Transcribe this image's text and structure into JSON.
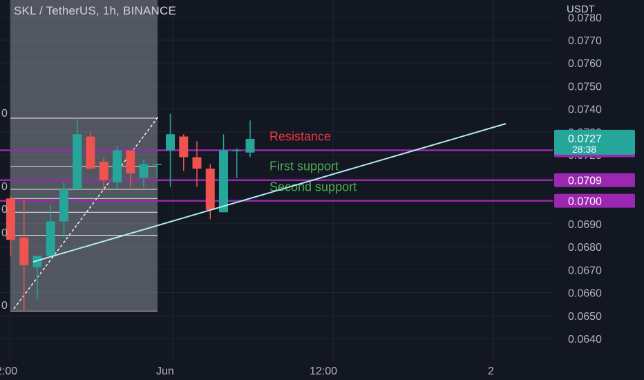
{
  "header": {
    "symbol_title": "SKL / TetherUS, 1h, BINANCE",
    "quote_currency": "USDT"
  },
  "chart_data": {
    "type": "candlestick",
    "title": "SKL / TetherUS, 1h, BINANCE",
    "ylabel": "USDT",
    "ylim": [
      0.0635,
      0.0785
    ],
    "y_ticks": [
      "0.0780",
      "0.0770",
      "0.0760",
      "0.0750",
      "0.0740",
      "0.0730",
      "0.0720",
      "0.0710",
      "0.0700",
      "0.0690",
      "0.0680",
      "0.0670",
      "0.0660",
      "0.0650",
      "0.0640"
    ],
    "x_ticks": [
      "2:00",
      "Jun",
      "12:00",
      "2"
    ],
    "grid": true,
    "candles": [
      {
        "o": 0.0701,
        "h": 0.0702,
        "l": 0.0676,
        "c": 0.0683
      },
      {
        "o": 0.0684,
        "h": 0.0701,
        "l": 0.0652,
        "c": 0.0672
      },
      {
        "o": 0.0671,
        "h": 0.0676,
        "l": 0.0657,
        "c": 0.0676
      },
      {
        "o": 0.0676,
        "h": 0.0698,
        "l": 0.0676,
        "c": 0.0691
      },
      {
        "o": 0.0691,
        "h": 0.0708,
        "l": 0.0684,
        "c": 0.0705
      },
      {
        "o": 0.0705,
        "h": 0.0736,
        "l": 0.0705,
        "c": 0.0729
      },
      {
        "o": 0.0728,
        "h": 0.073,
        "l": 0.0714,
        "c": 0.0714
      },
      {
        "o": 0.0717,
        "h": 0.0719,
        "l": 0.0705,
        "c": 0.0709
      },
      {
        "o": 0.0708,
        "h": 0.0724,
        "l": 0.0705,
        "c": 0.0722
      },
      {
        "o": 0.0722,
        "h": 0.0722,
        "l": 0.0706,
        "c": 0.0712
      },
      {
        "o": 0.071,
        "h": 0.0718,
        "l": 0.0706,
        "c": 0.0716
      },
      {
        "o": 0.0716,
        "h": 0.0716,
        "l": 0.071,
        "c": 0.0716
      },
      {
        "o": 0.0722,
        "h": 0.0738,
        "l": 0.0706,
        "c": 0.0729
      },
      {
        "o": 0.0728,
        "h": 0.0729,
        "l": 0.0713,
        "c": 0.0719
      },
      {
        "o": 0.0719,
        "h": 0.0726,
        "l": 0.0706,
        "c": 0.0714
      },
      {
        "o": 0.0714,
        "h": 0.0716,
        "l": 0.0692,
        "c": 0.0696
      },
      {
        "o": 0.0695,
        "h": 0.0729,
        "l": 0.0695,
        "c": 0.0722
      },
      {
        "o": 0.0722,
        "h": 0.0723,
        "l": 0.071,
        "c": 0.0722
      },
      {
        "o": 0.0721,
        "h": 0.0735,
        "l": 0.0719,
        "c": 0.0727
      }
    ],
    "levels": [
      {
        "label": "Resistance",
        "value": 0.0722,
        "tag": "0.0722",
        "text_color": "#f23645"
      },
      {
        "label": "First support",
        "value": 0.0709,
        "tag": "0.0709",
        "text_color": "#4caf50"
      },
      {
        "label": "Second support",
        "value": 0.07,
        "tag": "0.0700",
        "text_color": "#4caf50"
      }
    ],
    "last_price": {
      "value": 0.0727,
      "label": "0.0727",
      "countdown": "28:38",
      "color": "#26a69a"
    },
    "fib_levels": [
      0.0736,
      0.0715,
      0.0705,
      0.0701,
      0.0695,
      0.0685,
      0.0652
    ],
    "fib_tick_labels": [
      "0",
      "0",
      "0",
      "0",
      "0",
      "0"
    ],
    "colors": {
      "up": "#26a69a",
      "down": "#ef5350",
      "level_line": "#9c27b0",
      "trend_line": "#b2ebf2",
      "background": "#131722"
    }
  }
}
